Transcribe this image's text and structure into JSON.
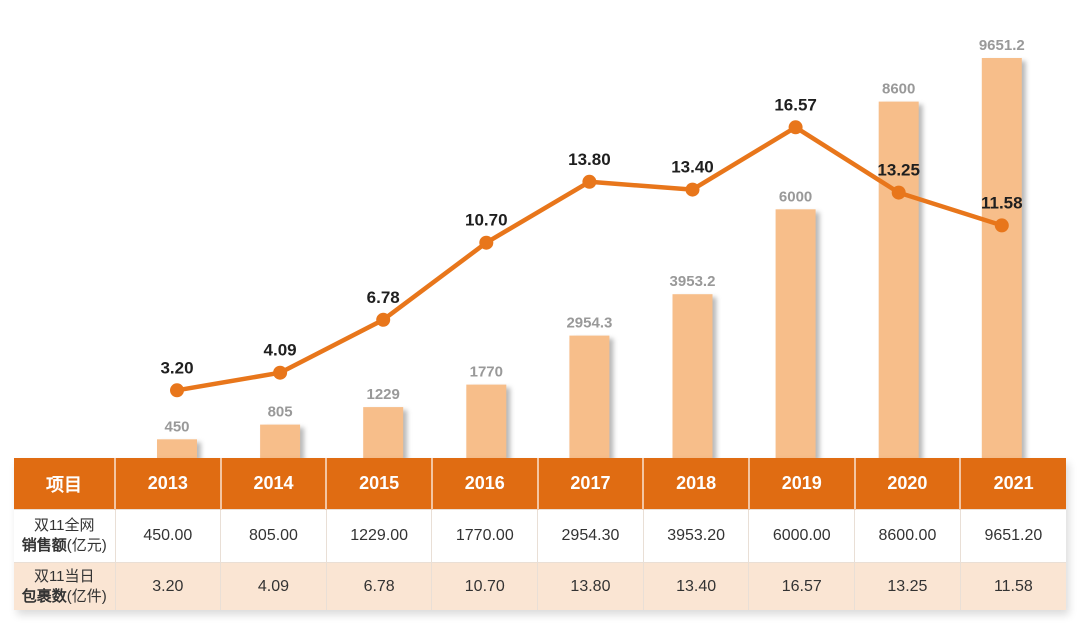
{
  "chart_data": {
    "type": "combo-bar-line",
    "categories": [
      "2013",
      "2014",
      "2015",
      "2016",
      "2017",
      "2018",
      "2019",
      "2020",
      "2021"
    ],
    "series": [
      {
        "name": "双11全网销售额(亿元)",
        "type": "bar",
        "values": [
          450,
          805,
          1229,
          1770,
          2954.3,
          3953.2,
          6000,
          8600,
          9651.2
        ],
        "labels": [
          "450",
          "805",
          "1229",
          "1770",
          "2954.3",
          "3953.2",
          "6000",
          "8600",
          "9651.2"
        ]
      },
      {
        "name": "双11当日包裹数(亿件)",
        "type": "line",
        "values": [
          3.2,
          4.09,
          6.78,
          10.7,
          13.8,
          13.4,
          16.57,
          13.25,
          11.58
        ],
        "labels": [
          "3.20",
          "4.09",
          "6.78",
          "10.70",
          "13.80",
          "13.40",
          "16.57",
          "13.25",
          "11.58"
        ]
      }
    ],
    "title": "",
    "xlabel": "",
    "ylabel": "",
    "legend": "none",
    "gridlines": false,
    "axes_visible": false,
    "bar_value_label_position": "above-bar",
    "line_value_label_position": "above-point"
  },
  "table": {
    "header": [
      "项目",
      "2013",
      "2014",
      "2015",
      "2016",
      "2017",
      "2018",
      "2019",
      "2020",
      "2021"
    ],
    "rows": [
      {
        "label": {
          "line1": "双11全网",
          "line2_bold": "销售额",
          "line2_rest": "(亿元)"
        },
        "values": [
          "450.00",
          "805.00",
          "1229.00",
          "1770.00",
          "2954.30",
          "3953.20",
          "6000.00",
          "8600.00",
          "9651.20"
        ]
      },
      {
        "label": {
          "line1": "双11当日",
          "line2_bold": "包裹数",
          "line2_rest": "(亿件)"
        },
        "values": [
          "3.20",
          "4.09",
          "6.78",
          "10.70",
          "13.80",
          "13.40",
          "16.57",
          "13.25",
          "11.58"
        ]
      }
    ]
  },
  "colors": {
    "accent_orange_header": "#E06C12",
    "line_orange": "#E8761B",
    "bar_fill": "#F7BE8A",
    "bar_label_gray": "#999999",
    "line_label_dark": "#1F1F1F",
    "row_alt_bg": "#FAE5D3",
    "header_text": "#FFFFFF",
    "cell_text": "#333333"
  }
}
